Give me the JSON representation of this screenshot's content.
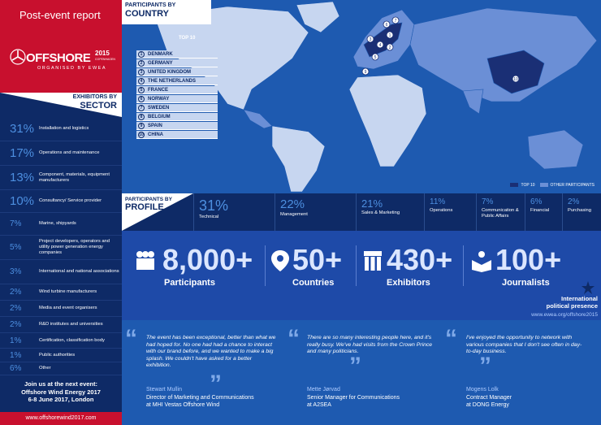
{
  "report_title": "Post-event report",
  "logo": {
    "word": "OFFSHORE",
    "year": "2015",
    "city": "COPENHAGEN",
    "organised": "ORGANISED BY EWEA"
  },
  "sector": {
    "heading_small": "EXHIBITORS BY",
    "heading_big": "SECTOR",
    "items": [
      {
        "pct": "31%",
        "label": "Installation and logistics"
      },
      {
        "pct": "17%",
        "label": "Operations and maintenance"
      },
      {
        "pct": "13%",
        "label": "Component, materials, equipment manufacturers"
      },
      {
        "pct": "10%",
        "label": "Consultancy/ Service provider"
      },
      {
        "pct": "7%",
        "label": "Marine, shipyards"
      },
      {
        "pct": "5%",
        "label": "Project developers, operators and utility power generation energy companies"
      },
      {
        "pct": "3%",
        "label": "International and national associations"
      },
      {
        "pct": "2%",
        "label": "Wind turbine manufacturers"
      },
      {
        "pct": "2%",
        "label": "Media and event organisers"
      },
      {
        "pct": "2%",
        "label": "R&D institutes and universities"
      },
      {
        "pct": "1%",
        "label": "Certification, classification body"
      },
      {
        "pct": "1%",
        "label": "Public authorities"
      },
      {
        "pct": "6%",
        "label": "Other"
      }
    ]
  },
  "join": {
    "line1": "Join us at the next event:",
    "line2": "Offshore Wind Energy 2017",
    "line3": "6-8 June 2017, London",
    "url": "www.offshorewind2017.com"
  },
  "country": {
    "heading_small": "PARTICIPANTS BY",
    "heading_big": "COUNTRY",
    "top10_label": "TOP 10",
    "items": [
      {
        "n": "1",
        "name": "DENMARK"
      },
      {
        "n": "2",
        "name": "GERMANY"
      },
      {
        "n": "3",
        "name": "UNITED KINGDOM"
      },
      {
        "n": "4",
        "name": "THE NETHERLANDS"
      },
      {
        "n": "5",
        "name": "FRANCE"
      },
      {
        "n": "6",
        "name": "NORWAY"
      },
      {
        "n": "7",
        "name": "SWEDEN"
      },
      {
        "n": "8",
        "name": "BELGIUM"
      },
      {
        "n": "9",
        "name": "SPAIN"
      },
      {
        "n": "10",
        "name": "CHINA"
      }
    ],
    "legend_top10": "TOP 10",
    "legend_other": "OTHER PARTICIPANTS",
    "colors": {
      "top10": "#1a2f75",
      "other": "#6b8fd6",
      "none": "#c7d6f0",
      "sea": "#1e5ab0"
    }
  },
  "profile": {
    "heading_small": "PARTICIPANTS BY",
    "heading_big": "PROFILE",
    "items": [
      {
        "pct": "31%",
        "label": "Technical"
      },
      {
        "pct": "22%",
        "label": "Management"
      },
      {
        "pct": "21%",
        "label": "Sales & Marketing"
      },
      {
        "pct": "11%",
        "label": "Operations"
      },
      {
        "pct": "7%",
        "label": "Communication & Public Affairs"
      },
      {
        "pct": "6%",
        "label": "Financial"
      },
      {
        "pct": "2%",
        "label": "Purchasing"
      }
    ]
  },
  "stats": [
    {
      "num": "8,000+",
      "label": "Participants",
      "icon": "people-icon"
    },
    {
      "num": "50+",
      "label": "Countries",
      "icon": "location-pin-icon"
    },
    {
      "num": "430+",
      "label": "Exhibitors",
      "icon": "booth-icon"
    },
    {
      "num": "100+",
      "label": "Journalists",
      "icon": "press-icon"
    }
  ],
  "international": {
    "line1": "International",
    "line2": "political presence",
    "url": "www.ewea.org/offshore2015"
  },
  "quotes": [
    {
      "text": "The event has been exceptional, better than what we had hoped for. No one had had a chance to interact with our brand before, and we wanted to make a big splash. We couldn't have asked for a better exhibition.",
      "name": "Stewart Mullin",
      "role1": "Director of Marketing and Communications",
      "role2": "at MHI Vestas Offshore Wind"
    },
    {
      "text": "There are so many interesting people here, and it's really busy. We've had visits from the Crown Prince and many politicians.",
      "name": "Mette Jørvad",
      "role1": "Senior Manager for Communications",
      "role2": "at A2SEA"
    },
    {
      "text": "I've enjoyed the opportunity to network with various companies that I don't see often in day-to-day business.",
      "name": "Mogens Lolk",
      "role1": "Contract Manager",
      "role2": "at DONG Energy"
    }
  ]
}
